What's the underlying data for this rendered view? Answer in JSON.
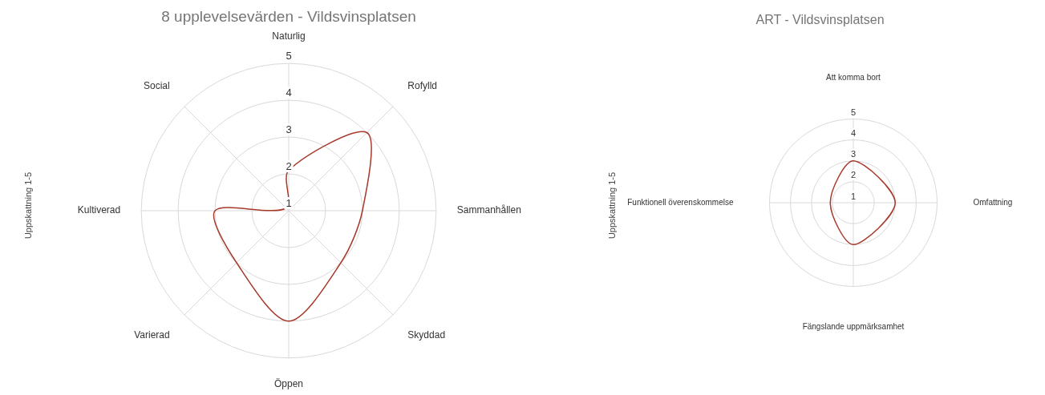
{
  "chart_data": [
    {
      "type": "radar",
      "title": "8 upplevelsevärden - Vildsvinsplatsen",
      "ylabel": "Uppskattning 1-5",
      "categories": [
        "Naturlig",
        "Rofylld",
        "Sammanhållen",
        "Skyddad",
        "Öppen",
        "Varierad",
        "Kultiverad",
        "Social"
      ],
      "series": [
        {
          "color": "#a8382a",
          "values": [
            2.1,
            4,
            3,
            3,
            4,
            3,
            3,
            1.1
          ]
        }
      ],
      "ylim": [
        1,
        5
      ],
      "yticks": [
        1,
        2,
        3,
        4,
        5
      ],
      "grid": true,
      "marker": "none"
    },
    {
      "type": "radar",
      "title": "ART - Vildsvinsplatsen",
      "ylabel": "Uppskattning 1-5",
      "categories": [
        "Att komma bort",
        "Omfattning",
        "Fängslande uppmärksamhet",
        "Funktionell överenskommelse"
      ],
      "series": [
        {
          "color": "#a8382a",
          "values": [
            3,
            3,
            3,
            2.1
          ]
        }
      ],
      "ylim": [
        1,
        5
      ],
      "yticks": [
        1,
        2,
        3,
        4,
        5
      ],
      "grid": true,
      "marker": "none"
    }
  ]
}
